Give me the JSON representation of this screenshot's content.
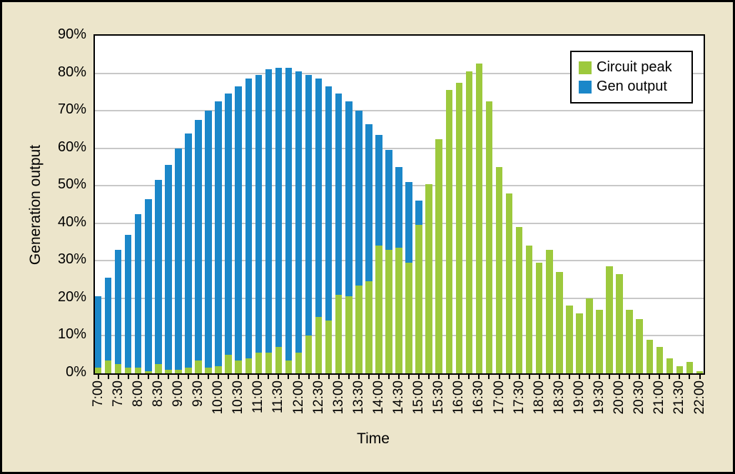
{
  "frame": {
    "background_color": "#ECE5CB",
    "border_color": "#000000",
    "plot_background": "#FFFFFF"
  },
  "chart_data": {
    "type": "bar",
    "stacked": true,
    "xlabel": "Time",
    "ylabel": "Generation output",
    "ylim": [
      0,
      90
    ],
    "grid": "horizontal",
    "gridline_color": "#C8C8C8",
    "legend_position": "top-right",
    "yticks": [
      "0%",
      "10%",
      "20%",
      "30%",
      "40%",
      "50%",
      "60%",
      "70%",
      "80%",
      "90%"
    ],
    "ytick_values": [
      0,
      10,
      20,
      30,
      40,
      50,
      60,
      70,
      80,
      90
    ],
    "xtick_label_every": 2,
    "categories": [
      "7:00",
      "7:15",
      "7:30",
      "7:45",
      "8:00",
      "8:15",
      "8:30",
      "8:45",
      "9:00",
      "9:15",
      "9:30",
      "9:45",
      "10:00",
      "10:15",
      "10:30",
      "10:45",
      "11:00",
      "11:15",
      "11:30",
      "11:45",
      "12:00",
      "12:15",
      "12:30",
      "12:45",
      "13:00",
      "13:15",
      "13:30",
      "13:45",
      "14:00",
      "14:15",
      "14:30",
      "14:45",
      "15:00",
      "15:15",
      "15:30",
      "15:45",
      "16:00",
      "16:15",
      "16:30",
      "16:45",
      "17:00",
      "17:15",
      "17:30",
      "17:45",
      "18:00",
      "18:15",
      "18:30",
      "18:45",
      "19:00",
      "19:15",
      "19:30",
      "19:45",
      "20:00",
      "20:15",
      "20:30",
      "20:45",
      "21:00",
      "21:15",
      "21:30",
      "21:45",
      "22:00"
    ],
    "series": [
      {
        "name": "Circuit peak",
        "color": "#9DC93D",
        "stack_order": "bottom",
        "values": [
          1.5,
          3.5,
          2.5,
          1.5,
          1.5,
          0.5,
          2.5,
          1,
          1,
          1.5,
          3.5,
          1.5,
          2,
          5,
          3.5,
          4,
          5.5,
          5.5,
          7,
          3.5,
          5.5,
          10,
          15,
          14,
          21,
          20.5,
          23.5,
          24.5,
          34,
          33,
          33.5,
          29.5,
          39.5,
          50.5,
          62.5,
          75.5,
          77.5,
          80.5,
          82.5,
          72.5,
          55,
          48,
          39,
          34,
          29.5,
          33,
          27,
          18,
          16,
          20,
          17,
          28.5,
          26.5,
          17,
          14.5,
          9,
          7,
          4,
          2,
          3,
          0.5
        ]
      },
      {
        "name": "Gen output",
        "color": "#1B87C9",
        "stack_order": "top",
        "values": [
          19,
          22,
          30.5,
          35.5,
          41,
          46,
          49,
          54.5,
          59,
          62.5,
          64,
          68.5,
          70.5,
          69.5,
          73,
          74.5,
          74,
          75.5,
          74.5,
          78,
          75,
          69.5,
          63.5,
          62.5,
          53.5,
          52,
          46.5,
          42,
          29.5,
          26.5,
          21.5,
          21.5,
          6.5,
          0,
          0,
          0,
          0,
          0,
          0,
          0,
          0,
          0,
          0,
          0,
          0,
          0,
          0,
          0,
          0,
          0,
          0,
          0,
          0,
          0,
          0,
          0,
          0,
          0,
          0,
          0,
          0
        ]
      }
    ]
  },
  "legend": {
    "items": [
      {
        "label": "Circuit peak",
        "color": "#9DC93D"
      },
      {
        "label": "Gen output",
        "color": "#1B87C9"
      }
    ]
  }
}
